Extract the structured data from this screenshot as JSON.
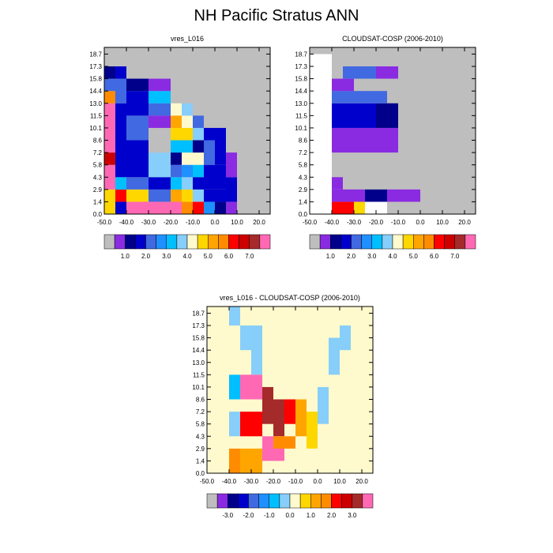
{
  "title": "NH Pacific Stratus ANN",
  "chart_data": [
    {
      "type": "heatmap",
      "title": "vres_L016",
      "xlabel": "",
      "ylabel": "",
      "x_ticks": [
        "-50.0",
        "-40.0",
        "-30.0",
        "-20.0",
        "-10.0",
        "0.0",
        "10.0",
        "20.0"
      ],
      "y_ticks": [
        "0.0",
        "1.4",
        "2.9",
        "4.3",
        "5.8",
        "7.2",
        "8.6",
        "10.1",
        "11.5",
        "13.0",
        "14.4",
        "15.8",
        "17.3",
        "18.7"
      ],
      "xlim": [
        -50,
        25
      ],
      "ylim": [
        0,
        19.5
      ],
      "colorbar_labels": [
        "1.0",
        "2.0",
        "3.0",
        "4.0",
        "5.0",
        "6.0",
        "7.0"
      ]
    },
    {
      "type": "heatmap",
      "title": "CLOUDSAT-COSP (2006-2010)",
      "xlabel": "",
      "ylabel": "",
      "x_ticks": [
        "-50.0",
        "-40.0",
        "-30.0",
        "-20.0",
        "-10.0",
        "0.0",
        "10.0",
        "20.0"
      ],
      "y_ticks": [
        "0.0",
        "1.4",
        "2.9",
        "4.3",
        "5.8",
        "7.2",
        "8.6",
        "10.1",
        "11.5",
        "13.0",
        "14.4",
        "15.8",
        "17.3",
        "18.7"
      ],
      "xlim": [
        -50,
        25
      ],
      "ylim": [
        0,
        19.5
      ],
      "colorbar_labels": [
        "1.0",
        "2.0",
        "3.0",
        "4.0",
        "5.0",
        "6.0",
        "7.0"
      ]
    },
    {
      "type": "heatmap",
      "title": "vres_L016 - CLOUDSAT-COSP (2006-2010)",
      "xlabel": "",
      "ylabel": "",
      "x_ticks": [
        "-50.0",
        "-40.0",
        "-30.0",
        "-20.0",
        "-10.0",
        "0.0",
        "10.0",
        "20.0"
      ],
      "y_ticks": [
        "0.0",
        "1.4",
        "2.9",
        "4.3",
        "5.8",
        "7.2",
        "8.6",
        "10.1",
        "11.5",
        "13.0",
        "14.4",
        "15.8",
        "17.3",
        "18.7"
      ],
      "xlim": [
        -50,
        25
      ],
      "ylim": [
        0,
        19.5
      ],
      "colorbar_labels": [
        "-3.0",
        "-2.0",
        "-1.0",
        "0.0",
        "1.0",
        "2.0",
        "3.0"
      ]
    }
  ],
  "colorbars": [
    [
      "#bebebe",
      "#8a2be2",
      "#00008b",
      "#0000cd",
      "#4169e1",
      "#1e90ff",
      "#00bfff",
      "#87cefa",
      "#fffacd",
      "#ffd700",
      "#ffa500",
      "#ff8c00",
      "#ff0000",
      "#cd0000",
      "#a52a2a",
      "#ff69b4"
    ],
    [
      "#bebebe",
      "#8a2be2",
      "#00008b",
      "#0000cd",
      "#4169e1",
      "#1e90ff",
      "#00bfff",
      "#87cefa",
      "#fffacd",
      "#ffd700",
      "#ffa500",
      "#ff8c00",
      "#ff0000",
      "#cd0000",
      "#a52a2a",
      "#ff69b4"
    ],
    [
      "#bebebe",
      "#8a2be2",
      "#00008b",
      "#0000cd",
      "#4169e1",
      "#1e90ff",
      "#00bfff",
      "#87cefa",
      "#fffacd",
      "#ffd700",
      "#ffa500",
      "#ff8c00",
      "#ff0000",
      "#cd0000",
      "#a52a2a",
      "#ff69b4"
    ]
  ],
  "colors": {
    "missing": "#bebebe",
    "blank": "#ffffff"
  }
}
